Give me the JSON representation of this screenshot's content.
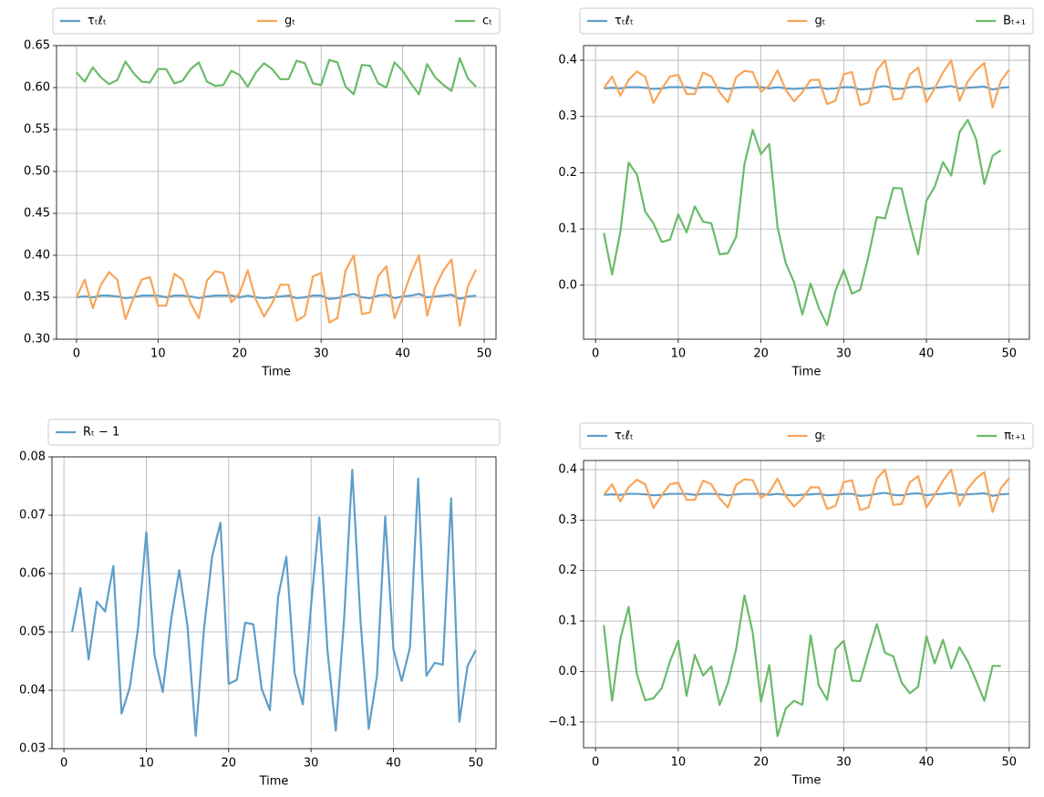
{
  "chart_data": [
    {
      "type": "line",
      "xlabel": "Time",
      "legend": "above",
      "grid": true,
      "x": [
        0,
        1,
        2,
        3,
        4,
        5,
        6,
        7,
        8,
        9,
        10,
        11,
        12,
        13,
        14,
        15,
        16,
        17,
        18,
        19,
        20,
        21,
        22,
        23,
        24,
        25,
        26,
        27,
        28,
        29,
        30,
        31,
        32,
        33,
        34,
        35,
        36,
        37,
        38,
        39,
        40,
        41,
        42,
        43,
        44,
        45,
        46,
        47,
        48,
        49
      ],
      "xlim": [
        -2.45,
        51.45
      ],
      "xticks": [
        0,
        10,
        20,
        30,
        40,
        50
      ],
      "ylim": [
        0.3,
        0.65
      ],
      "yticks": [
        {
          "value": 0.3,
          "label": "0.30"
        },
        0.35,
        {
          "value": 0.4,
          "label": "0.40"
        },
        0.45,
        {
          "value": 0.5,
          "label": "0.50"
        },
        0.55,
        {
          "value": 0.6,
          "label": "0.60"
        },
        0.65
      ],
      "series": [
        {
          "name": "τₜℓₜ",
          "color": "#5f9ec9",
          "values": [
            0.35,
            0.351,
            0.35,
            0.352,
            0.352,
            0.351,
            0.349,
            0.35,
            0.352,
            0.352,
            0.352,
            0.35,
            0.352,
            0.352,
            0.351,
            0.349,
            0.351,
            0.352,
            0.352,
            0.352,
            0.35,
            0.352,
            0.35,
            0.349,
            0.35,
            0.351,
            0.352,
            0.349,
            0.35,
            0.352,
            0.352,
            0.348,
            0.349,
            0.352,
            0.354,
            0.35,
            0.349,
            0.352,
            0.353,
            0.349,
            0.351,
            0.352,
            0.354,
            0.35,
            0.351,
            0.352,
            0.353,
            0.348,
            0.351,
            0.352
          ]
        },
        {
          "name": "gₜ",
          "color": "#f8a55a",
          "values": [
            0.35,
            0.371,
            0.337,
            0.365,
            0.38,
            0.371,
            0.324,
            0.349,
            0.371,
            0.374,
            0.34,
            0.34,
            0.378,
            0.371,
            0.343,
            0.325,
            0.37,
            0.381,
            0.379,
            0.344,
            0.355,
            0.382,
            0.347,
            0.327,
            0.343,
            0.365,
            0.365,
            0.322,
            0.328,
            0.375,
            0.379,
            0.32,
            0.325,
            0.382,
            0.4,
            0.33,
            0.332,
            0.375,
            0.387,
            0.325,
            0.35,
            0.378,
            0.4,
            0.328,
            0.362,
            0.382,
            0.395,
            0.316,
            0.363,
            0.383
          ]
        },
        {
          "name": "cₜ",
          "color": "#6abb6a",
          "values": [
            0.618,
            0.607,
            0.624,
            0.612,
            0.604,
            0.609,
            0.631,
            0.617,
            0.607,
            0.606,
            0.622,
            0.622,
            0.605,
            0.608,
            0.622,
            0.63,
            0.607,
            0.602,
            0.603,
            0.62,
            0.615,
            0.601,
            0.618,
            0.629,
            0.622,
            0.61,
            0.61,
            0.632,
            0.629,
            0.605,
            0.603,
            0.633,
            0.63,
            0.601,
            0.592,
            0.627,
            0.626,
            0.605,
            0.6,
            0.63,
            0.62,
            0.605,
            0.592,
            0.628,
            0.612,
            0.603,
            0.596,
            0.635,
            0.611,
            0.601
          ]
        }
      ]
    },
    {
      "type": "line",
      "xlabel": "Time",
      "legend": "above",
      "grid": true,
      "x": [
        1,
        2,
        3,
        4,
        5,
        6,
        7,
        8,
        9,
        10,
        11,
        12,
        13,
        14,
        15,
        16,
        17,
        18,
        19,
        20,
        21,
        22,
        23,
        24,
        25,
        26,
        27,
        28,
        29,
        30,
        31,
        32,
        33,
        34,
        35,
        36,
        37,
        38,
        39,
        40,
        41,
        42,
        43,
        44,
        45,
        46,
        47,
        48,
        49,
        50
      ],
      "xlim": [
        -1.45,
        52.45
      ],
      "xticks": [
        0,
        10,
        20,
        30,
        40,
        50
      ],
      "ylim": [
        -0.096,
        0.426
      ],
      "yticks": [
        {
          "value": 0,
          "label": "0.0"
        },
        0.1,
        0.2,
        0.3,
        0.4
      ],
      "series": [
        {
          "name": "τₜℓₜ",
          "color": "#5f9ec9",
          "values": [
            0.35,
            0.351,
            0.35,
            0.352,
            0.352,
            0.351,
            0.349,
            0.35,
            0.352,
            0.352,
            0.352,
            0.35,
            0.352,
            0.352,
            0.351,
            0.349,
            0.351,
            0.352,
            0.352,
            0.352,
            0.35,
            0.352,
            0.35,
            0.349,
            0.35,
            0.351,
            0.352,
            0.349,
            0.35,
            0.352,
            0.352,
            0.348,
            0.349,
            0.352,
            0.354,
            0.35,
            0.349,
            0.352,
            0.353,
            0.349,
            0.351,
            0.352,
            0.354,
            0.35,
            0.351,
            0.352,
            0.353,
            0.348,
            0.351,
            0.352
          ]
        },
        {
          "name": "gₜ",
          "color": "#f8a55a",
          "values": [
            0.35,
            0.371,
            0.337,
            0.365,
            0.38,
            0.371,
            0.324,
            0.349,
            0.371,
            0.374,
            0.34,
            0.34,
            0.378,
            0.371,
            0.343,
            0.325,
            0.37,
            0.381,
            0.379,
            0.344,
            0.355,
            0.382,
            0.347,
            0.327,
            0.343,
            0.365,
            0.365,
            0.322,
            0.328,
            0.375,
            0.379,
            0.32,
            0.325,
            0.382,
            0.4,
            0.33,
            0.332,
            0.375,
            0.387,
            0.325,
            0.35,
            0.378,
            0.4,
            0.328,
            0.362,
            0.382,
            0.395,
            0.316,
            0.363,
            0.383
          ]
        },
        {
          "name": "Bₜ₊₁",
          "color": "#6abb6a",
          "values": [
            0.093,
            0.019,
            0.095,
            0.218,
            0.197,
            0.131,
            0.11,
            0.077,
            0.081,
            0.126,
            0.094,
            0.14,
            0.113,
            0.11,
            0.055,
            0.057,
            0.086,
            0.215,
            0.276,
            0.233,
            0.251,
            0.103,
            0.039,
            0.005,
            -0.052,
            0.003,
            -0.041,
            -0.071,
            -0.01,
            0.027,
            -0.015,
            -0.008,
            0.052,
            0.121,
            0.119,
            0.173,
            0.172,
            0.11,
            0.055,
            0.15,
            0.175,
            0.219,
            0.195,
            0.272,
            0.294,
            0.26,
            0.18,
            0.23,
            0.24,
            null
          ]
        }
      ]
    },
    {
      "type": "line",
      "xlabel": "Time",
      "legend": "above",
      "grid": true,
      "x": [
        1,
        2,
        3,
        4,
        5,
        6,
        7,
        8,
        9,
        10,
        11,
        12,
        13,
        14,
        15,
        16,
        17,
        18,
        19,
        20,
        21,
        22,
        23,
        24,
        25,
        26,
        27,
        28,
        29,
        30,
        31,
        32,
        33,
        34,
        35,
        36,
        37,
        38,
        39,
        40,
        41,
        42,
        43,
        44,
        45,
        46,
        47,
        48,
        49,
        50
      ],
      "xlim": [
        -1.45,
        52.45
      ],
      "xticks": [
        0,
        10,
        20,
        30,
        40,
        50
      ],
      "ylim": [
        0.03,
        0.08
      ],
      "yticks": [
        0.03,
        0.04,
        0.05,
        0.06,
        0.07,
        0.08
      ],
      "series": [
        {
          "name": "Rₜ − 1",
          "color": "#5f9ec9",
          "values": [
            0.05,
            0.0575,
            0.0453,
            0.0552,
            0.0535,
            0.0613,
            0.036,
            0.0405,
            0.0507,
            0.0671,
            0.046,
            0.0397,
            0.052,
            0.0606,
            0.051,
            0.0322,
            0.0505,
            0.063,
            0.0687,
            0.0411,
            0.0418,
            0.0516,
            0.0513,
            0.0403,
            0.0366,
            0.056,
            0.0629,
            0.043,
            0.0376,
            0.0545,
            0.0696,
            0.0467,
            0.0331,
            0.052,
            0.0778,
            0.052,
            0.0334,
            0.0425,
            0.0698,
            0.047,
            0.0416,
            0.0473,
            0.0763,
            0.0425,
            0.0447,
            0.0444,
            0.0729,
            0.0346,
            0.0442,
            0.0469
          ]
        }
      ]
    },
    {
      "type": "line",
      "xlabel": "Time",
      "legend": "above",
      "grid": true,
      "x": [
        1,
        2,
        3,
        4,
        5,
        6,
        7,
        8,
        9,
        10,
        11,
        12,
        13,
        14,
        15,
        16,
        17,
        18,
        19,
        20,
        21,
        22,
        23,
        24,
        25,
        26,
        27,
        28,
        29,
        30,
        31,
        32,
        33,
        34,
        35,
        36,
        37,
        38,
        39,
        40,
        41,
        42,
        43,
        44,
        45,
        46,
        47,
        48,
        49,
        50
      ],
      "xlim": [
        -1.45,
        52.45
      ],
      "xticks": [
        0,
        10,
        20,
        30,
        40,
        50
      ],
      "ylim": [
        -0.151,
        0.418
      ],
      "yticks": [
        {
          "value": -0.1,
          "label": "−0.1"
        },
        {
          "value": 0,
          "label": "0.0"
        },
        0.1,
        0.2,
        0.3,
        0.4
      ],
      "series": [
        {
          "name": "τₜℓₜ",
          "color": "#5f9ec9",
          "values": [
            0.35,
            0.351,
            0.35,
            0.352,
            0.352,
            0.351,
            0.349,
            0.35,
            0.352,
            0.352,
            0.352,
            0.35,
            0.352,
            0.352,
            0.351,
            0.349,
            0.351,
            0.352,
            0.352,
            0.352,
            0.35,
            0.352,
            0.35,
            0.349,
            0.35,
            0.351,
            0.352,
            0.349,
            0.35,
            0.352,
            0.352,
            0.348,
            0.349,
            0.352,
            0.354,
            0.35,
            0.349,
            0.352,
            0.353,
            0.349,
            0.351,
            0.352,
            0.354,
            0.35,
            0.351,
            0.352,
            0.353,
            0.348,
            0.351,
            0.352
          ]
        },
        {
          "name": "gₜ",
          "color": "#f8a55a",
          "values": [
            0.35,
            0.371,
            0.337,
            0.365,
            0.38,
            0.371,
            0.324,
            0.349,
            0.371,
            0.374,
            0.34,
            0.34,
            0.378,
            0.371,
            0.343,
            0.325,
            0.37,
            0.381,
            0.379,
            0.344,
            0.355,
            0.382,
            0.347,
            0.327,
            0.343,
            0.365,
            0.365,
            0.322,
            0.328,
            0.375,
            0.379,
            0.32,
            0.325,
            0.382,
            0.4,
            0.33,
            0.332,
            0.375,
            0.387,
            0.325,
            0.35,
            0.378,
            0.4,
            0.328,
            0.362,
            0.382,
            0.395,
            0.316,
            0.363,
            0.383
          ]
        },
        {
          "name": "πₜ₊₁",
          "color": "#6abb6a",
          "values": [
            0.092,
            -0.058,
            0.065,
            0.128,
            -0.005,
            -0.057,
            -0.053,
            -0.033,
            0.02,
            0.061,
            -0.048,
            0.033,
            -0.008,
            0.01,
            -0.066,
            -0.023,
            0.045,
            0.151,
            0.077,
            -0.06,
            0.013,
            -0.128,
            -0.073,
            -0.058,
            -0.066,
            0.072,
            -0.028,
            -0.056,
            0.044,
            0.061,
            -0.018,
            -0.019,
            0.039,
            0.094,
            0.037,
            0.03,
            -0.022,
            -0.043,
            -0.03,
            0.07,
            0.016,
            0.063,
            0.006,
            0.048,
            0.02,
            -0.018,
            -0.058,
            0.011,
            0.011,
            null
          ]
        }
      ]
    }
  ]
}
